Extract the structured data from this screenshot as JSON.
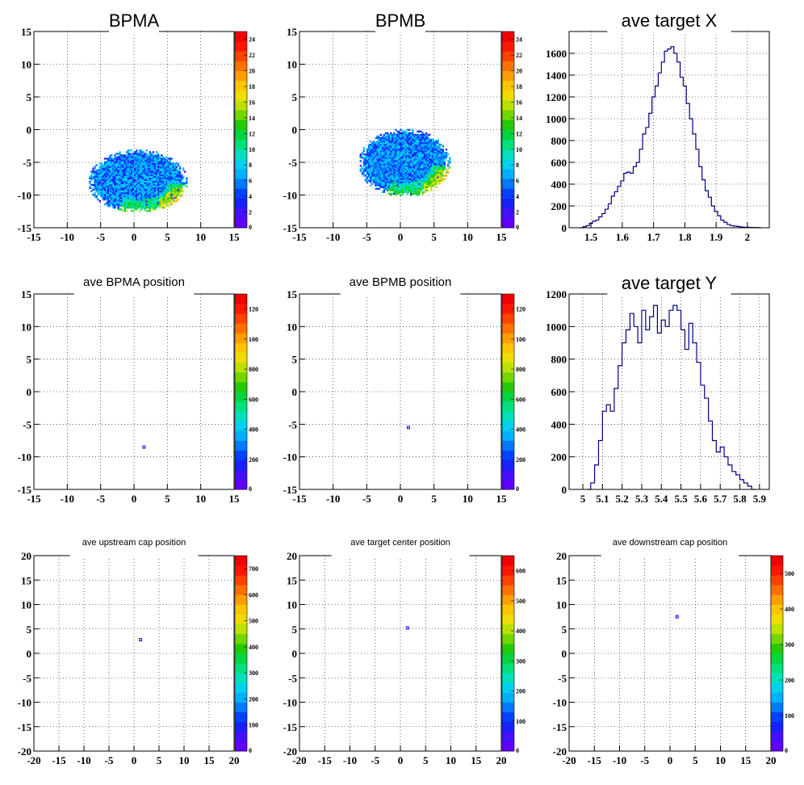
{
  "chart_data": [
    {
      "type": "heatmap",
      "title": "BPMA",
      "title_size": "large",
      "xlim": [
        -15,
        15
      ],
      "ylim": [
        -15,
        15
      ],
      "xticks": [
        "-15",
        "-10",
        "-5",
        "0",
        "5",
        "10",
        "15"
      ],
      "yticks": [
        "-15",
        "-10",
        "-5",
        "0",
        "5",
        "10",
        "15"
      ],
      "grid": true,
      "colorbar": {
        "min": 0,
        "max": 24,
        "labels": [
          "2",
          "4",
          "6",
          "8",
          "10",
          "12",
          "14",
          "16",
          "18",
          "20",
          "22",
          "24"
        ]
      },
      "blob": {
        "shape": "ellipse",
        "center": [
          0.5,
          -8.0
        ],
        "half_width": 7.5,
        "half_height": 4.8,
        "peak_band": "lower-right"
      }
    },
    {
      "type": "heatmap",
      "title": "BPMB",
      "title_size": "large",
      "xlim": [
        -15,
        15
      ],
      "ylim": [
        -15,
        15
      ],
      "xticks": [
        "-15",
        "-10",
        "-5",
        "0",
        "5",
        "10",
        "15"
      ],
      "yticks": [
        "-15",
        "-10",
        "-5",
        "0",
        "5",
        "10",
        "15"
      ],
      "grid": true,
      "colorbar": {
        "min": 0,
        "max": 24,
        "labels": [
          "2",
          "4",
          "6",
          "8",
          "10",
          "12",
          "14",
          "16",
          "18",
          "20",
          "22",
          "24"
        ]
      },
      "blob": {
        "shape": "ellipse",
        "center": [
          0.5,
          -5.2
        ],
        "half_width": 6.8,
        "half_height": 5.2,
        "peak_band": "lower-right"
      }
    },
    {
      "type": "line",
      "title": "ave target X",
      "title_size": "large",
      "xlim": [
        1.43,
        2.07
      ],
      "ylim": [
        0,
        1800
      ],
      "xticks": [
        "1.5",
        "1.6",
        "1.7",
        "1.8",
        "1.9",
        "2"
      ],
      "yticks": [
        "0",
        "200",
        "400",
        "600",
        "800",
        "1000",
        "1200",
        "1400",
        "1600"
      ],
      "grid": true,
      "series": [
        {
          "values": [
            [
              1.47,
              0
            ],
            [
              1.48,
              10
            ],
            [
              1.49,
              20
            ],
            [
              1.5,
              40
            ],
            [
              1.51,
              60
            ],
            [
              1.52,
              70
            ],
            [
              1.53,
              100
            ],
            [
              1.54,
              130
            ],
            [
              1.55,
              170
            ],
            [
              1.56,
              220
            ],
            [
              1.57,
              290
            ],
            [
              1.58,
              330
            ],
            [
              1.59,
              380
            ],
            [
              1.6,
              430
            ],
            [
              1.61,
              500
            ],
            [
              1.62,
              510
            ],
            [
              1.63,
              500
            ],
            [
              1.64,
              560
            ],
            [
              1.65,
              600
            ],
            [
              1.66,
              720
            ],
            [
              1.67,
              860
            ],
            [
              1.68,
              920
            ],
            [
              1.69,
              1050
            ],
            [
              1.7,
              1200
            ],
            [
              1.71,
              1300
            ],
            [
              1.72,
              1420
            ],
            [
              1.73,
              1520
            ],
            [
              1.74,
              1620
            ],
            [
              1.75,
              1640
            ],
            [
              1.76,
              1660
            ],
            [
              1.77,
              1600
            ],
            [
              1.78,
              1520
            ],
            [
              1.79,
              1380
            ],
            [
              1.8,
              1300
            ],
            [
              1.81,
              1140
            ],
            [
              1.82,
              1000
            ],
            [
              1.83,
              860
            ],
            [
              1.84,
              720
            ],
            [
              1.85,
              560
            ],
            [
              1.86,
              440
            ],
            [
              1.87,
              340
            ],
            [
              1.88,
              280
            ],
            [
              1.89,
              200
            ],
            [
              1.9,
              150
            ],
            [
              1.91,
              110
            ],
            [
              1.92,
              70
            ],
            [
              1.93,
              50
            ],
            [
              1.94,
              30
            ],
            [
              1.95,
              20
            ],
            [
              1.96,
              15
            ],
            [
              1.97,
              12
            ],
            [
              1.98,
              8
            ],
            [
              1.99,
              5
            ],
            [
              2.0,
              5
            ],
            [
              2.01,
              3
            ],
            [
              2.02,
              2
            ],
            [
              2.03,
              2
            ],
            [
              2.04,
              0
            ]
          ]
        }
      ]
    },
    {
      "type": "heatmap",
      "title": "ave BPMA position",
      "title_size": "medium",
      "xlim": [
        -15,
        15
      ],
      "ylim": [
        -15,
        15
      ],
      "xticks": [
        "-15",
        "-10",
        "-5",
        "0",
        "5",
        "10",
        "15"
      ],
      "yticks": [
        "-15",
        "-10",
        "-5",
        "0",
        "5",
        "10",
        "15"
      ],
      "grid": true,
      "colorbar": {
        "min": 0,
        "max": 1250,
        "labels": [
          "200",
          "400",
          "600",
          "800",
          "100",
          "120"
        ]
      },
      "spot": [
        1.5,
        -8.5
      ]
    },
    {
      "type": "heatmap",
      "title": "ave BPMB position",
      "title_size": "medium",
      "xlim": [
        -15,
        15
      ],
      "ylim": [
        -15,
        15
      ],
      "xticks": [
        "-15",
        "-10",
        "-5",
        "0",
        "5",
        "10",
        "15"
      ],
      "yticks": [
        "-15",
        "-10",
        "-5",
        "0",
        "5",
        "10",
        "15"
      ],
      "grid": true,
      "colorbar": {
        "min": 0,
        "max": 1350,
        "labels": [
          "200",
          "400",
          "600",
          "800",
          "100",
          "120"
        ]
      },
      "spot": [
        1.2,
        -5.5
      ]
    },
    {
      "type": "line",
      "title": "ave target Y",
      "title_size": "large",
      "xlim": [
        4.93,
        5.95
      ],
      "ylim": [
        0,
        1200
      ],
      "xticks": [
        "5",
        "5.1",
        "5.2",
        "5.3",
        "5.4",
        "5.5",
        "5.6",
        "5.7",
        "5.8",
        "5.9"
      ],
      "yticks": [
        "0",
        "200",
        "400",
        "600",
        "800",
        "1000",
        "1200"
      ],
      "grid": true,
      "series": [
        {
          "values": [
            [
              5.03,
              0
            ],
            [
              5.05,
              40
            ],
            [
              5.07,
              150
            ],
            [
              5.09,
              300
            ],
            [
              5.11,
              480
            ],
            [
              5.13,
              520
            ],
            [
              5.15,
              480
            ],
            [
              5.17,
              620
            ],
            [
              5.19,
              760
            ],
            [
              5.21,
              900
            ],
            [
              5.23,
              980
            ],
            [
              5.25,
              1080
            ],
            [
              5.27,
              1000
            ],
            [
              5.29,
              900
            ],
            [
              5.31,
              1100
            ],
            [
              5.33,
              980
            ],
            [
              5.35,
              1060
            ],
            [
              5.37,
              1130
            ],
            [
              5.39,
              960
            ],
            [
              5.41,
              1040
            ],
            [
              5.43,
              1000
            ],
            [
              5.45,
              1100
            ],
            [
              5.47,
              1130
            ],
            [
              5.49,
              1100
            ],
            [
              5.51,
              980
            ],
            [
              5.53,
              860
            ],
            [
              5.55,
              1020
            ],
            [
              5.57,
              900
            ],
            [
              5.59,
              780
            ],
            [
              5.61,
              640
            ],
            [
              5.63,
              560
            ],
            [
              5.65,
              420
            ],
            [
              5.67,
              300
            ],
            [
              5.69,
              230
            ],
            [
              5.71,
              260
            ],
            [
              5.73,
              200
            ],
            [
              5.75,
              150
            ],
            [
              5.77,
              110
            ],
            [
              5.79,
              90
            ],
            [
              5.81,
              60
            ],
            [
              5.83,
              40
            ],
            [
              5.85,
              20
            ],
            [
              5.87,
              0
            ]
          ]
        }
      ]
    },
    {
      "type": "heatmap",
      "title": "ave upstream cap position",
      "title_size": "small",
      "xlim": [
        -20,
        20
      ],
      "ylim": [
        -20,
        20
      ],
      "xticks": [
        "-20",
        "-15",
        "-10",
        "-5",
        "0",
        "5",
        "10",
        "15",
        "20"
      ],
      "yticks": [
        "-20",
        "-15",
        "-10",
        "-5",
        "0",
        "5",
        "10",
        "15",
        "20"
      ],
      "grid": true,
      "colorbar": {
        "min": 0,
        "max": 770,
        "labels": [
          "100",
          "200",
          "300",
          "400",
          "500",
          "600",
          "700"
        ]
      },
      "spot": [
        1.3,
        2.8
      ]
    },
    {
      "type": "heatmap",
      "title": "ave target center  position",
      "title_size": "small",
      "xlim": [
        -20,
        20
      ],
      "ylim": [
        -20,
        20
      ],
      "xticks": [
        "-20",
        "-15",
        "-10",
        "-5",
        "0",
        "5",
        "10",
        "15",
        "20"
      ],
      "yticks": [
        "-20",
        "-15",
        "-10",
        "-5",
        "0",
        "5",
        "10",
        "15",
        "20"
      ],
      "grid": true,
      "colorbar": {
        "min": 0,
        "max": 670,
        "labels": [
          "100",
          "200",
          "300",
          "400",
          "500",
          "600"
        ]
      },
      "spot": [
        1.4,
        5.2
      ]
    },
    {
      "type": "heatmap",
      "title": "ave downstream cap position",
      "title_size": "small",
      "xlim": [
        -20,
        20
      ],
      "ylim": [
        -20,
        20
      ],
      "xticks": [
        "-20",
        "-15",
        "-10",
        "-5",
        "0",
        "5",
        "10",
        "15",
        "20"
      ],
      "yticks": [
        "-20",
        "-15",
        "-10",
        "-5",
        "0",
        "5",
        "10",
        "15",
        "20"
      ],
      "grid": true,
      "colorbar": {
        "min": 0,
        "max": 580,
        "labels": [
          "100",
          "200",
          "300",
          "400",
          "500"
        ]
      },
      "spot": [
        1.4,
        7.5
      ]
    }
  ]
}
